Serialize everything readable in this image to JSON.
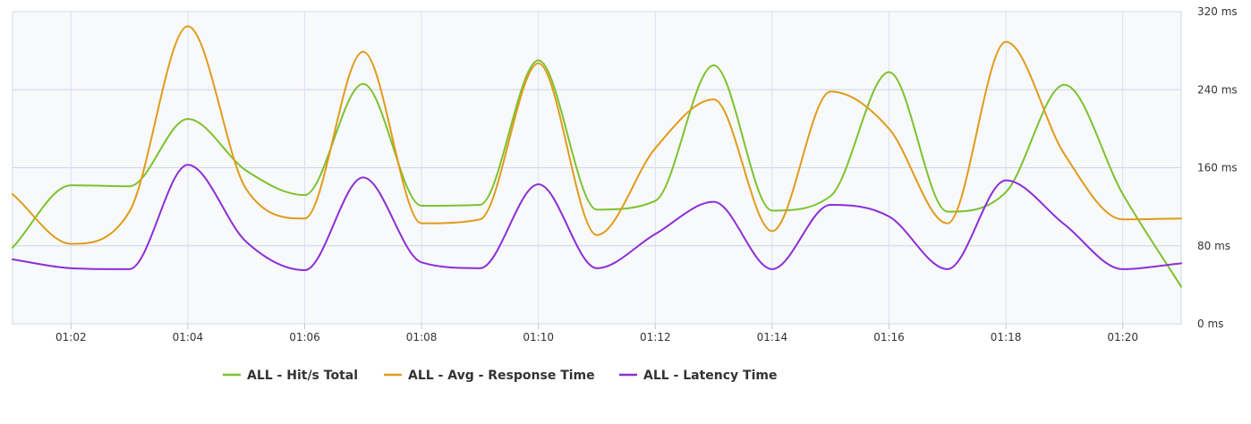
{
  "chart_data": {
    "type": "line",
    "x": [
      "01:01",
      "01:02",
      "01:03",
      "01:04",
      "01:05",
      "01:06",
      "01:07",
      "01:08",
      "01:09",
      "01:10",
      "01:11",
      "01:12",
      "01:13",
      "01:14",
      "01:15",
      "01:16",
      "01:17",
      "01:18",
      "01:19",
      "01:20",
      "01:21"
    ],
    "x_tick_labels": [
      "01:02",
      "01:04",
      "01:06",
      "01:08",
      "01:10",
      "01:12",
      "01:14",
      "01:16",
      "01:18",
      "01:20"
    ],
    "y_tick_labels": [
      "0 ms",
      "80 ms",
      "160 ms",
      "240 ms",
      "320 ms"
    ],
    "ylim": [
      0,
      320
    ],
    "y_axis_position": "right",
    "grid": true,
    "legend_position": "bottom",
    "series": [
      {
        "name": "ALL - Hit/s Total",
        "color": "#7cc22f",
        "values": [
          78,
          142,
          141,
          210,
          157,
          132,
          246,
          121,
          122,
          270,
          117,
          126,
          265,
          116,
          131,
          258,
          115,
          135,
          245,
          133,
          38
        ]
      },
      {
        "name": "ALL - Avg - Response Time",
        "color": "#e09b1c",
        "values": [
          133,
          82,
          115,
          305,
          138,
          108,
          279,
          103,
          107,
          267,
          91,
          180,
          230,
          95,
          238,
          200,
          103,
          289,
          174,
          107,
          108
        ]
      },
      {
        "name": "ALL - Latency Time",
        "color": "#8c2fd6",
        "values": [
          66,
          57,
          56,
          163,
          84,
          55,
          150,
          63,
          57,
          143,
          57,
          92,
          125,
          56,
          122,
          110,
          56,
          147,
          102,
          56,
          62
        ]
      }
    ]
  }
}
